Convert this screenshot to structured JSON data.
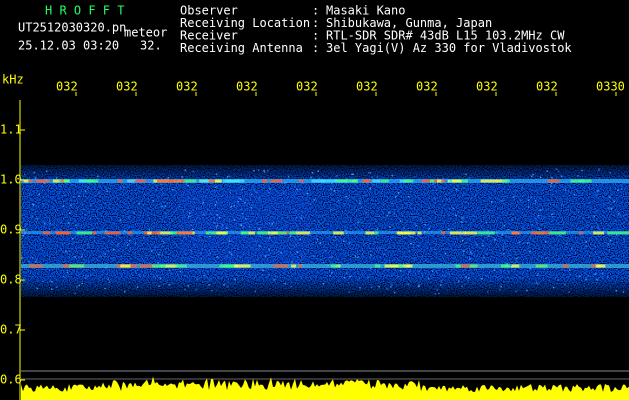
{
  "header": {
    "app_name": "H R O F F T",
    "file_name": "UT2512030320.pn",
    "category": "meteor",
    "datetime": "25.12.03 03:20",
    "count": "32.",
    "separator": ":",
    "info": [
      {
        "label": "Observer",
        "value": "Masaki Kano"
      },
      {
        "label": "Receiving Location",
        "value": "Shibukawa, Gunma, Japan"
      },
      {
        "label": "Receiver",
        "value": "RTL-SDR SDR# 43dB L15 103.2MHz CW"
      },
      {
        "label": "Receiving Antenna",
        "value": "3el Yagi(V) Az 330 for Vladivostok"
      }
    ]
  },
  "spectrogram": {
    "y_unit": "kHz",
    "yticks": [
      "1.1",
      "1.0",
      "0.9",
      "0.8",
      "0.7",
      "0.6"
    ],
    "xticks": [
      "032",
      "032",
      "032",
      "032",
      "032",
      "032",
      "032",
      "032",
      "032",
      "0330"
    ]
  }
}
